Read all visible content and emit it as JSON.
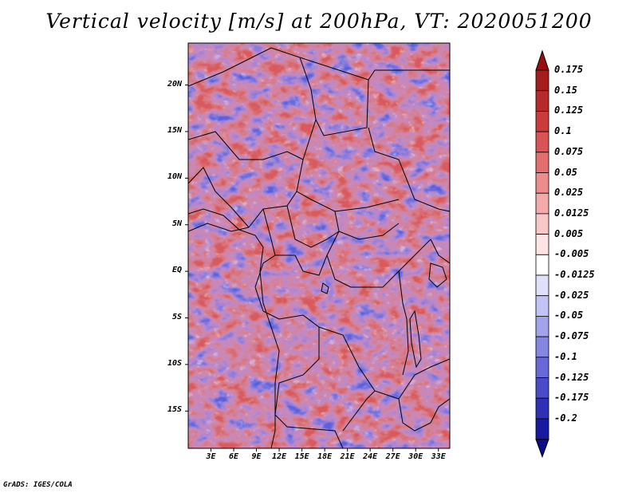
{
  "title": "Vertical velocity [m/s] at 200hPa, VT: 2020051200",
  "credit": "GrADS: IGES/COLA",
  "map": {
    "region": "Central and East Africa",
    "field": "vertical velocity",
    "lon_range": [
      0,
      34.5
    ],
    "lat_range": [
      -19,
      24.5
    ],
    "lat_labels": [
      {
        "text": "20N",
        "value": 20
      },
      {
        "text": "15N",
        "value": 15
      },
      {
        "text": "10N",
        "value": 10
      },
      {
        "text": "5N",
        "value": 5
      },
      {
        "text": "EQ",
        "value": 0
      },
      {
        "text": "5S",
        "value": -5
      },
      {
        "text": "10S",
        "value": -10
      },
      {
        "text": "15S",
        "value": -15
      }
    ],
    "lon_labels": [
      {
        "text": "3E",
        "value": 3
      },
      {
        "text": "6E",
        "value": 6
      },
      {
        "text": "9E",
        "value": 9
      },
      {
        "text": "12E",
        "value": 12
      },
      {
        "text": "15E",
        "value": 15
      },
      {
        "text": "18E",
        "value": 18
      },
      {
        "text": "21E",
        "value": 21
      },
      {
        "text": "24E",
        "value": 24
      },
      {
        "text": "27E",
        "value": 27
      },
      {
        "text": "30E",
        "value": 30
      },
      {
        "text": "33E",
        "value": 33
      }
    ]
  },
  "colorbar": {
    "levels": [
      {
        "label": "0.175",
        "color": "#a51c1c"
      },
      {
        "label": "0.15",
        "color": "#b82a2a"
      },
      {
        "label": "0.125",
        "color": "#ca3b3b"
      },
      {
        "label": "0.1",
        "color": "#d95454"
      },
      {
        "label": "0.075",
        "color": "#e36f6f"
      },
      {
        "label": "0.05",
        "color": "#ec8c8c"
      },
      {
        "label": "0.025",
        "color": "#f3aaaa"
      },
      {
        "label": "0.0125",
        "color": "#f8c8c8"
      },
      {
        "label": "0.005",
        "color": "#fde4e4"
      },
      {
        "label": "-0.005",
        "color": "#ffffff"
      },
      {
        "label": "-0.0125",
        "color": "#e0e0fa"
      },
      {
        "label": "-0.025",
        "color": "#c2c2f4"
      },
      {
        "label": "-0.05",
        "color": "#a3a3ec"
      },
      {
        "label": "-0.075",
        "color": "#8585e2"
      },
      {
        "label": "-0.1",
        "color": "#6868d6"
      },
      {
        "label": "-0.125",
        "color": "#4b4bc8"
      },
      {
        "label": "-0.175",
        "color": "#3030b5"
      },
      {
        "label": "-0.2",
        "color": "#1818a0"
      }
    ],
    "top_color": "#9a1010",
    "bottom_color": "#0c0c8c"
  }
}
